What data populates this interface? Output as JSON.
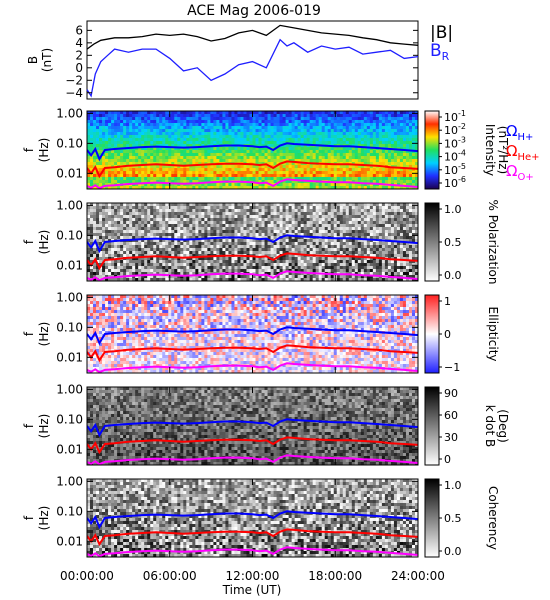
{
  "figure": {
    "title": "ACE Mag 2006-019",
    "xlabel": "Time (UT)",
    "xticks": [
      "00:00:00",
      "06:00:00",
      "12:00:00",
      "18:00:00",
      "24:00:00"
    ]
  },
  "chart_data": [
    {
      "type": "line",
      "ylabel": "B",
      "yunit": "(nT)",
      "yticks": [
        "6",
        "4",
        "2",
        "0",
        "−2",
        "−4"
      ],
      "ylim": [
        -5,
        7.5
      ],
      "legend": [
        "|B|",
        "B",
        "R"
      ],
      "series": [
        {
          "name": "|B|",
          "color": "#000000",
          "x": [
            0,
            0.5,
            1,
            2,
            3,
            4,
            5,
            6,
            7,
            8,
            9,
            10,
            11,
            12,
            13,
            14,
            15,
            16,
            17,
            18,
            19,
            20,
            21,
            22,
            23,
            24
          ],
          "y": [
            3,
            3.8,
            4.4,
            4.8,
            4.8,
            5,
            5.4,
            5.2,
            5.4,
            5,
            4.3,
            4.7,
            5.6,
            6,
            5.2,
            6.8,
            6.4,
            6,
            5.6,
            5.4,
            5.2,
            4.8,
            4.5,
            4,
            3.8,
            3.6
          ]
        },
        {
          "name": "B_R",
          "color": "#1f1fff",
          "x": [
            0,
            0.3,
            0.6,
            1,
            1.5,
            2,
            3,
            4,
            5,
            6,
            7,
            8,
            9,
            10,
            11,
            12,
            13,
            14,
            14.5,
            15,
            16,
            17,
            18,
            19,
            20,
            21,
            22,
            23,
            24
          ],
          "y": [
            -3.5,
            -4.5,
            -1,
            1,
            2,
            3,
            2.5,
            3,
            3,
            1.5,
            -0.5,
            0,
            -2,
            -1,
            0.5,
            1,
            0,
            4.5,
            3.5,
            4,
            2.5,
            3.5,
            3,
            3.3,
            2.2,
            2.5,
            2.8,
            1.5,
            1.8
          ]
        }
      ]
    },
    {
      "type": "heatmap",
      "ylabel": "f",
      "yunit": "(Hz)",
      "yticks": [
        "1.00",
        "0.10",
        "0.01"
      ],
      "ylim": [
        0.003,
        1.2
      ],
      "colorbar": {
        "label": "Intensity",
        "unit": "(nT²/Hz)",
        "ticks": [
          "10",
          "10",
          "10",
          "10",
          "10",
          "10"
        ],
        "tick_exponents": [
          "-1",
          "-2",
          "-3",
          "-4",
          "-5",
          "-6"
        ],
        "palette": [
          "#1a0050",
          "#2030ff",
          "#00d0ff",
          "#20e060",
          "#ffe000",
          "#ff3000",
          "#ffffff"
        ]
      },
      "lines": [
        {
          "label": "Ω",
          "sub": "H+",
          "color": "#0000ff"
        },
        {
          "label": "Ω",
          "sub": "He+",
          "color": "#ff0000"
        },
        {
          "label": "Ω",
          "sub": "O+",
          "color": "#ff00ff"
        }
      ]
    },
    {
      "type": "heatmap",
      "ylabel": "f",
      "yunit": "(Hz)",
      "yticks": [
        "1.00",
        "0.10",
        "0.01"
      ],
      "ylim": [
        0.003,
        1.2
      ],
      "colorbar": {
        "label": "% Polarization",
        "ticks": [
          "1.0",
          "0.5",
          "0.0"
        ],
        "palette": [
          "#ffffff",
          "#000000"
        ]
      }
    },
    {
      "type": "heatmap",
      "ylabel": "f",
      "yunit": "(Hz)",
      "yticks": [
        "1.00",
        "0.10",
        "0.01"
      ],
      "ylim": [
        0.003,
        1.2
      ],
      "colorbar": {
        "label": "Ellipticity",
        "ticks": [
          "1",
          "0",
          "−1"
        ],
        "palette": [
          "#2020ff",
          "#ffffff",
          "#ff2020"
        ]
      }
    },
    {
      "type": "heatmap",
      "ylabel": "f",
      "yunit": "(Hz)",
      "yticks": [
        "1.00",
        "0.10",
        "0.01"
      ],
      "ylim": [
        0.003,
        1.2
      ],
      "colorbar": {
        "label": "k dot B",
        "unit": "(Deg)",
        "ticks": [
          "90",
          "60",
          "30",
          "0"
        ],
        "palette": [
          "#ffffff",
          "#000000"
        ]
      }
    },
    {
      "type": "heatmap",
      "ylabel": "f",
      "yunit": "(Hz)",
      "yticks": [
        "1.00",
        "0.10",
        "0.01"
      ],
      "ylim": [
        0.003,
        1.2
      ],
      "colorbar": {
        "label": "Coherency",
        "ticks": [
          "1.0",
          "0.5",
          "0.0"
        ],
        "palette": [
          "#ffffff",
          "#000000"
        ]
      }
    }
  ],
  "cyclotron": {
    "x": [
      0,
      0.3,
      0.6,
      0.9,
      1.3,
      2,
      3,
      4,
      5,
      6,
      7,
      8,
      9,
      10,
      11,
      12,
      12.5,
      13,
      13.5,
      14,
      14.5,
      15,
      16,
      17,
      18,
      19,
      20,
      21,
      22,
      23,
      24
    ],
    "H+": [
      0.06,
      0.04,
      0.065,
      0.03,
      0.06,
      0.065,
      0.07,
      0.075,
      0.078,
      0.075,
      0.072,
      0.075,
      0.08,
      0.085,
      0.085,
      0.08,
      0.075,
      0.078,
      0.06,
      0.085,
      0.1,
      0.095,
      0.09,
      0.085,
      0.08,
      0.08,
      0.075,
      0.07,
      0.065,
      0.06,
      0.055
    ],
    "He+": [
      0.015,
      0.01,
      0.016,
      0.008,
      0.015,
      0.016,
      0.018,
      0.019,
      0.02,
      0.019,
      0.018,
      0.019,
      0.02,
      0.021,
      0.021,
      0.02,
      0.019,
      0.02,
      0.015,
      0.021,
      0.025,
      0.024,
      0.022,
      0.021,
      0.02,
      0.02,
      0.019,
      0.018,
      0.016,
      0.015,
      0.014
    ],
    "O+": [
      0.0038,
      0.0033,
      0.004,
      0.0032,
      0.0038,
      0.004,
      0.0044,
      0.0047,
      0.0049,
      0.0047,
      0.0045,
      0.0047,
      0.005,
      0.0053,
      0.0053,
      0.005,
      0.0047,
      0.0049,
      0.0038,
      0.0053,
      0.0063,
      0.006,
      0.0056,
      0.0053,
      0.005,
      0.005,
      0.0047,
      0.0045,
      0.0041,
      0.0038,
      0.0035
    ]
  }
}
